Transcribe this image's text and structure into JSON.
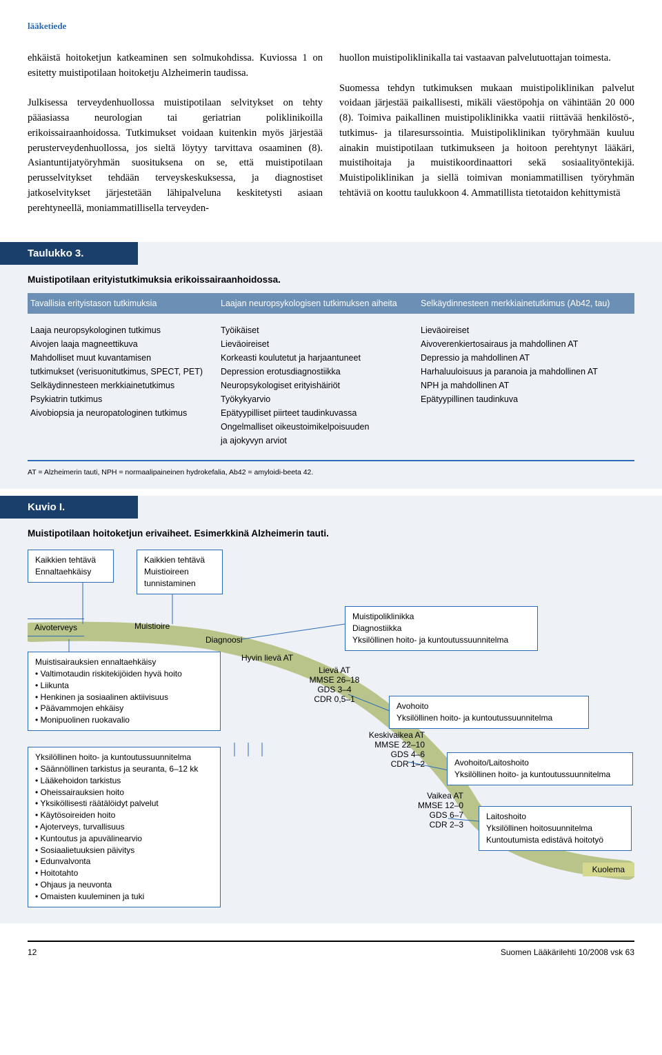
{
  "header_tag": "lääketiede",
  "body": {
    "col1": "ehkäistä hoitoketjun katkeaminen sen solmukohdissa. Kuviossa 1 on esitetty muistipotilaan hoitoketju Alzheimerin taudissa.\n\nJulkisessa terveydenhuollossa muistipotilaan selvitykset on tehty pääasiassa neurologian tai geriatrian poliklinikoilla erikoissairaanhoidossa. Tutkimukset voidaan kuitenkin myös järjestää perusterveydenhuollossa, jos sieltä löytyy tarvittava osaaminen (8). Asiantuntijatyöryhmän suosituksena on se, että muistipotilaan perusselvitykset tehdään terveyskeskuksessa, ja diagnostiset jatkoselvitykset järjestetään lähipalveluna keskitetysti asiaan perehtyneellä, moniammatillisella terveyden-",
    "col2": "huollon muistipoliklinikalla tai vastaavan palvelutuottajan toimesta.\n\nSuomessa tehdyn tutkimuksen mukaan muistipoliklinikan palvelut voidaan järjestää paikallisesti, mikäli väestöpohja on vähintään 20 000 (8). Toimiva paikallinen muistipoliklinikka vaatii riittävää henkilöstö-, tutkimus- ja tilaresurssointia. Muistipoliklinikan työryhmään kuuluu ainakin muistipotilaan tutkimukseen ja hoitoon perehtynyt lääkäri, muistihoitaja ja muistikoordinaattori sekä sosiaalityöntekijä. Muistipoliklinikan ja siellä toimivan moniammatillisen työryhmän tehtäviä on koottu taulukkoon 4. Ammatillista tietotaidon kehittymistä"
  },
  "table3": {
    "title": "Taulukko 3.",
    "subtitle": "Muistipotilaan erityistutkimuksia erikoissairaanhoidossa.",
    "h1": "Tavallisia erityistason tutkimuksia",
    "h2": "Laajan neuropsykologisen tutkimuksen aiheita",
    "h3": "Selkäydinnesteen merkkiainetutkimus (Ab42, tau)",
    "c1": [
      "Laaja neuropsykologinen tutkimus",
      "Aivojen laaja magneettikuva",
      "Mahdolliset muut kuvantamisen",
      "tutkimukset (verisuonitutkimus, SPECT, PET)",
      "Selkäydinnesteen merkkiainetutkimus",
      "Psykiatrin tutkimus",
      "Aivobiopsia ja neuropatologinen tutkimus"
    ],
    "c2": [
      "Työikäiset",
      "Lieväoireiset",
      "Korkeasti koulutetut ja harjaantuneet",
      "Depression erotusdiagnostiikka",
      "Neuropsykologiset erityishäiriöt",
      "Työkykyarvio",
      "Epätyypilliset piirteet taudinkuvassa",
      "Ongelmalliset oikeustoimikelpoisuuden",
      "ja ajokyvyn arviot"
    ],
    "c3": [
      "Lieväoireiset",
      "Aivoverenkiertosairaus ja mahdollinen AT",
      "Depressio ja mahdollinen AT",
      "Harhaluuloisuus ja paranoia ja mahdollinen AT",
      "NPH ja mahdollinen AT",
      "Epätyypillinen taudinkuva"
    ],
    "footnote": "AT = Alzheimerin tauti, NPH = normaalipaineinen hydrokefalia, Ab42 = amyloidi-beeta 42."
  },
  "kuvio": {
    "title": "Kuvio I.",
    "subtitle": "Muistipotilaan hoitoketjun erivaiheet. Esimerkkinä Alzheimerin tauti.",
    "box_ennalta": "Kaikkien tehtävä\nEnnaltaehkäisy",
    "box_tunnist": "Kaikkien tehtävä\nMuistioireen\ntunnistaminen",
    "label_aivoterveys": "Aivoterveys",
    "label_muistioire": "Muistioire",
    "label_diagnoosi": "Diagnoosi",
    "label_hyvin": "Hyvin lievä AT",
    "box_muistisair": {
      "title": "Muistisairauksien ennaltaehkäisy",
      "items": [
        "Valtimotaudin riskitekijöiden hyvä hoito",
        "Liikunta",
        "Henkinen ja sosiaalinen aktiivisuus",
        "Päävammojen ehkäisy",
        "Monipuolinen ruokavalio"
      ]
    },
    "box_yksiloll": {
      "title": "Yksilöllinen hoito- ja kuntoutussuunnitelma",
      "items": [
        "Säännöllinen tarkistus ja seuranta, 6–12 kk",
        "Lääkehoidon tarkistus",
        "Oheissairauksien hoito",
        "Yksiköllisesti räätälöidyt palvelut",
        "Käytösoireiden hoito",
        "Ajoterveys, turvallisuus",
        "Kuntoutus ja apuvälinearvio",
        "Sosiaalietuuksien päivitys",
        "Edunvalvonta",
        "Hoitotahto",
        "Ohjaus ja neuvonta",
        "Omaisten kuuleminen ja tuki"
      ]
    },
    "box_polikl": "Muistipoliklinikka\nDiagnostiikka\nYksilöllinen hoito- ja kuntoutussuunnitelma",
    "stage1": "Lievä AT\nMMSE 26–18\nGDS 3–4\nCDR 0,5–1",
    "box_avo": "Avohoito\nYksilöllinen hoito- ja kuntoutussuunnitelma",
    "stage2": "Keskivaikea AT\nMMSE 22–10\nGDS 4–6\nCDR 1–2",
    "box_avolait": "Avohoito/Laitoshoito\nYksilöllinen hoito- ja kuntoutussuunnitelma",
    "stage3": "Vaikea AT\nMMSE 12–0\nGDS 6–7\nCDR 2–3",
    "box_laitos": "Laitoshoito\nYksilöllinen hoitosuunnitelma\nKuntoutumista edistävä hoitotyö",
    "kuolema": "Kuolema"
  },
  "footer": {
    "page": "12",
    "right": "Suomen Lääkärilehti 10/2008 vsk 63"
  },
  "colors": {
    "brand": "#2a6ab8",
    "darkbar": "#1a3f6b",
    "header_row": "#6b8fb5",
    "block_bg": "#eef2f7",
    "curve": "#b9c48a",
    "kuolema_bg": "#d4d98f"
  }
}
